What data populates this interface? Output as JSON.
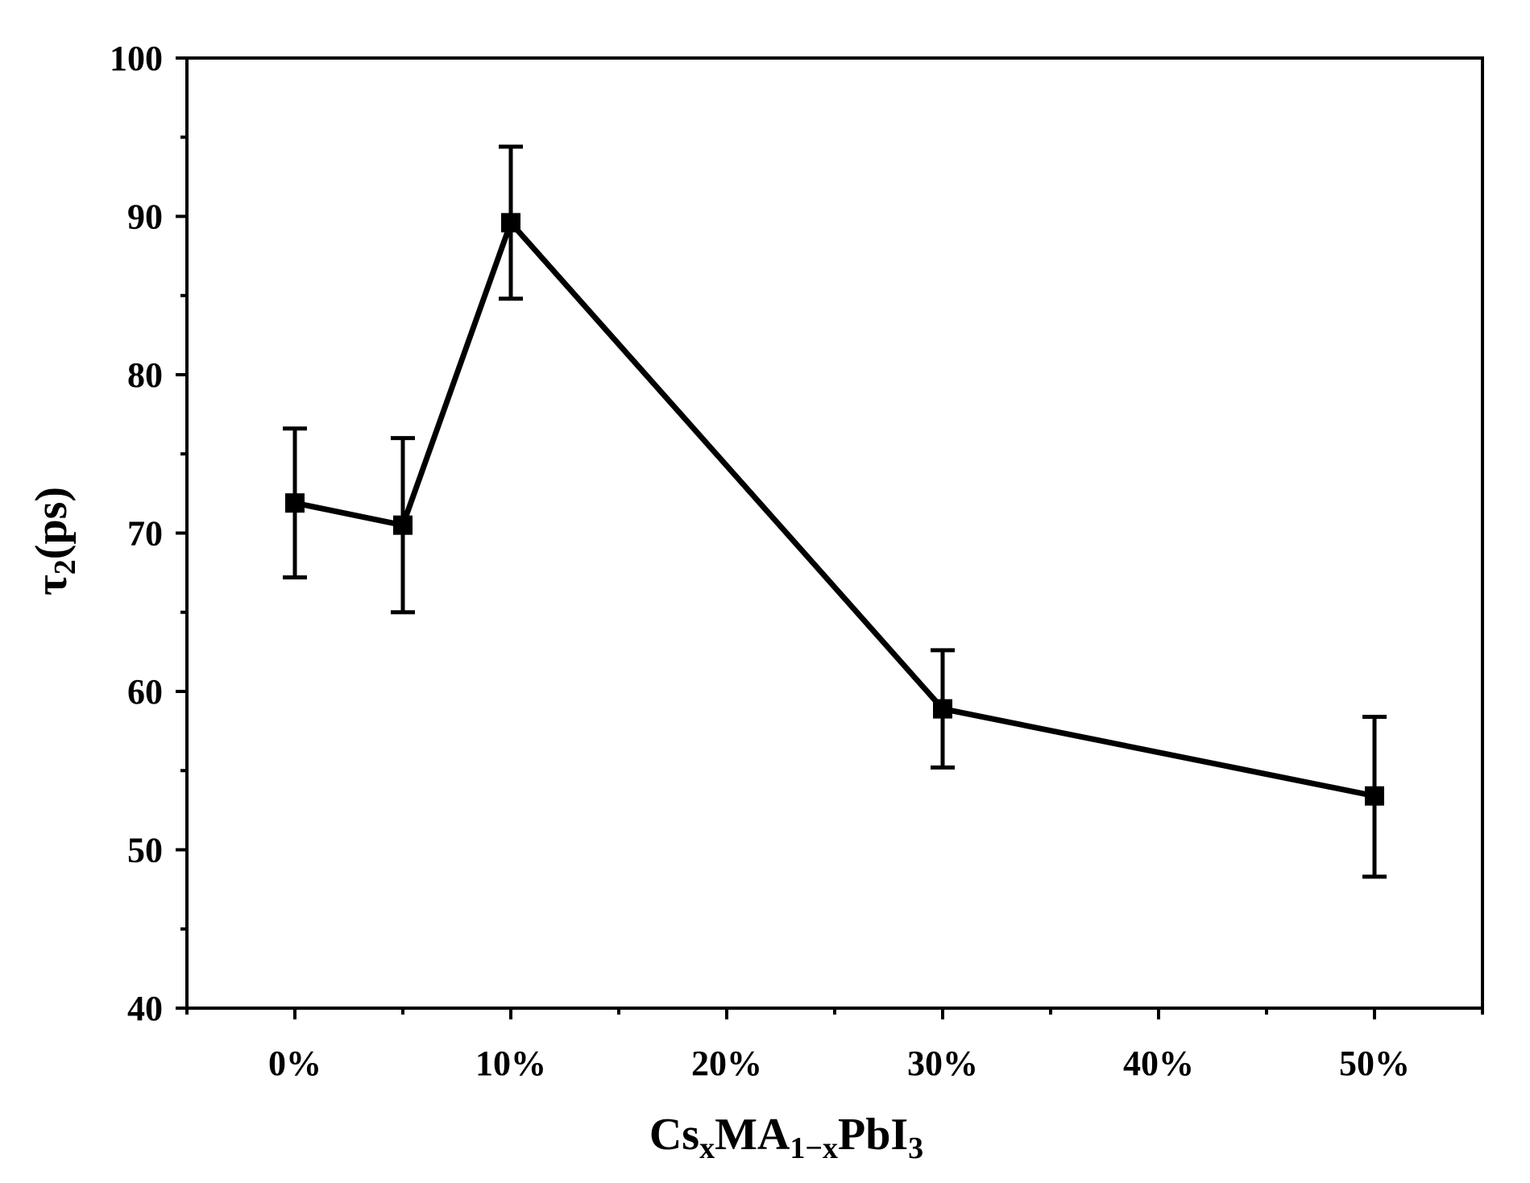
{
  "chart_data": {
    "type": "line",
    "title": "",
    "xlabel": {
      "parts": [
        {
          "text": "Cs",
          "sub": false
        },
        {
          "text": "x",
          "sub": true
        },
        {
          "text": "MA",
          "sub": false
        },
        {
          "text": "1−x",
          "sub": true
        },
        {
          "text": "PbI",
          "sub": false
        },
        {
          "text": "3",
          "sub": true
        }
      ]
    },
    "ylabel": {
      "parts": [
        {
          "text": "τ",
          "sub": false
        },
        {
          "text": "2",
          "sub": true
        },
        {
          "text": "(ps)",
          "sub": false
        }
      ]
    },
    "xlim": [
      -5,
      55
    ],
    "ylim": [
      40,
      100
    ],
    "x_ticks": [
      0,
      10,
      20,
      30,
      40,
      50
    ],
    "x_tick_labels": [
      "0%",
      "10%",
      "20%",
      "30%",
      "40%",
      "50%"
    ],
    "x_minor_ticks": [
      -5,
      5,
      15,
      25,
      35,
      45,
      55
    ],
    "y_ticks": [
      40,
      50,
      60,
      70,
      80,
      90,
      100
    ],
    "y_tick_labels": [
      "40",
      "50",
      "60",
      "70",
      "80",
      "90",
      "100"
    ],
    "y_minor_ticks": [
      45,
      55,
      65,
      75,
      85,
      95
    ],
    "grid": false,
    "series": [
      {
        "name": "tau2",
        "color": "#000000",
        "marker": "square",
        "x": [
          0,
          5,
          10,
          30,
          50
        ],
        "y": [
          71.9,
          70.5,
          89.6,
          58.9,
          53.4
        ],
        "y_err_upper": [
          76.6,
          76.0,
          94.4,
          62.6,
          58.4
        ],
        "y_err_lower": [
          67.2,
          65.0,
          84.8,
          55.2,
          48.3
        ]
      }
    ]
  }
}
